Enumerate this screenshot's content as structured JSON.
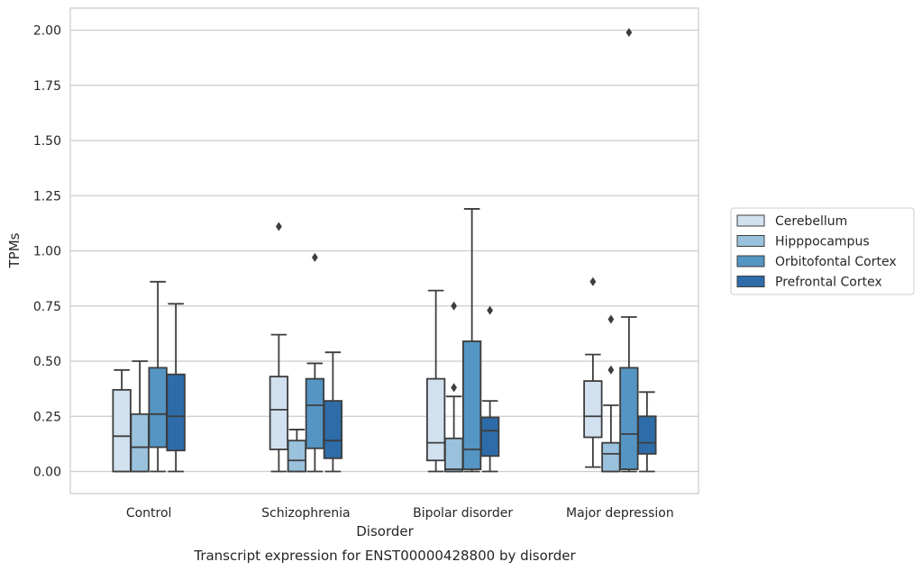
{
  "chart_data": {
    "type": "box",
    "caption": "Transcript expression for ENST00000428800 by disorder",
    "xlabel": "Disorder",
    "ylabel": "TPMs",
    "ylim": [
      -0.1,
      2.1
    ],
    "yticks": [
      "0.00",
      "0.25",
      "0.50",
      "0.75",
      "1.00",
      "1.25",
      "1.50",
      "1.75",
      "2.00"
    ],
    "ytick_values": [
      0,
      0.25,
      0.5,
      0.75,
      1.0,
      1.25,
      1.5,
      1.75,
      2.0
    ],
    "grid": true,
    "legend_position": "right",
    "categories": [
      "Control",
      "Schizophrenia",
      "Bipolar disorder",
      "Major depression"
    ],
    "series": [
      {
        "name": "Cerebellum",
        "color": "#d2e1f0",
        "boxes": [
          {
            "min": 0.0,
            "q1": 0.0,
            "median": 0.16,
            "q3": 0.37,
            "max": 0.46,
            "outliers": []
          },
          {
            "min": 0.0,
            "q1": 0.1,
            "median": 0.28,
            "q3": 0.43,
            "max": 0.62,
            "outliers": [
              1.11
            ]
          },
          {
            "min": 0.0,
            "q1": 0.05,
            "median": 0.13,
            "q3": 0.42,
            "max": 0.82,
            "outliers": []
          },
          {
            "min": 0.02,
            "q1": 0.155,
            "median": 0.25,
            "q3": 0.41,
            "max": 0.53,
            "outliers": [
              0.86
            ]
          }
        ]
      },
      {
        "name": "Hipppocampus",
        "color": "#9ac2dc",
        "boxes": [
          {
            "min": 0.0,
            "q1": 0.0,
            "median": 0.11,
            "q3": 0.26,
            "max": 0.5,
            "outliers": []
          },
          {
            "min": 0.0,
            "q1": 0.0,
            "median": 0.05,
            "q3": 0.14,
            "max": 0.19,
            "outliers": []
          },
          {
            "min": 0.0,
            "q1": 0.0,
            "median": 0.01,
            "q3": 0.15,
            "max": 0.34,
            "outliers": [
              0.38,
              0.75
            ]
          },
          {
            "min": 0.0,
            "q1": 0.0,
            "median": 0.08,
            "q3": 0.13,
            "max": 0.3,
            "outliers": [
              0.46,
              0.69
            ]
          }
        ]
      },
      {
        "name": "Orbitofontal Cortex",
        "color": "#5495c3",
        "boxes": [
          {
            "min": 0.0,
            "q1": 0.11,
            "median": 0.26,
            "q3": 0.47,
            "max": 0.86,
            "outliers": []
          },
          {
            "min": 0.0,
            "q1": 0.105,
            "median": 0.3,
            "q3": 0.42,
            "max": 0.49,
            "outliers": [
              0.97
            ]
          },
          {
            "min": 0.0,
            "q1": 0.01,
            "median": 0.1,
            "q3": 0.59,
            "max": 1.19,
            "outliers": []
          },
          {
            "min": 0.0,
            "q1": 0.01,
            "median": 0.17,
            "q3": 0.47,
            "max": 0.7,
            "outliers": [
              1.99
            ]
          }
        ]
      },
      {
        "name": "Prefrontal Cortex",
        "color": "#2d6ca8",
        "boxes": [
          {
            "min": 0.0,
            "q1": 0.095,
            "median": 0.25,
            "q3": 0.44,
            "max": 0.76,
            "outliers": []
          },
          {
            "min": 0.0,
            "q1": 0.06,
            "median": 0.14,
            "q3": 0.32,
            "max": 0.54,
            "outliers": []
          },
          {
            "min": 0.0,
            "q1": 0.07,
            "median": 0.185,
            "q3": 0.245,
            "max": 0.32,
            "outliers": [
              0.73
            ]
          },
          {
            "min": 0.0,
            "q1": 0.08,
            "median": 0.13,
            "q3": 0.25,
            "max": 0.36,
            "outliers": []
          }
        ]
      }
    ]
  }
}
